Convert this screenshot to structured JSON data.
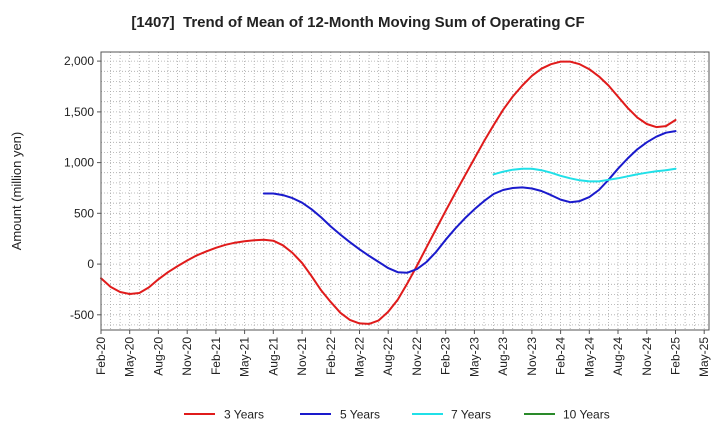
{
  "chart_data": {
    "type": "line",
    "title": "[1407]  Trend of Mean of 12-Month Moving Sum of Operating CF",
    "xlabel": "",
    "ylabel": "Amount (million yen)",
    "x_ticks": [
      "Feb-20",
      "May-20",
      "Aug-20",
      "Nov-20",
      "Feb-21",
      "May-21",
      "Aug-21",
      "Nov-21",
      "Feb-22",
      "May-22",
      "Aug-22",
      "Nov-22",
      "Feb-23",
      "May-23",
      "Aug-23",
      "Nov-23",
      "Feb-24",
      "May-24",
      "Aug-24",
      "Nov-24",
      "Feb-25",
      "May-25"
    ],
    "y_ticks": [
      -500,
      0,
      500,
      1000,
      1500,
      2000
    ],
    "y_tick_labels": [
      "-500",
      "0",
      "500",
      "1,000",
      "1,500",
      "2,000"
    ],
    "ylim": [
      -650,
      2090
    ],
    "grid": true,
    "legend_position": "bottom",
    "series": [
      {
        "name": "3 Years",
        "color": "#e01b1b",
        "values": [
          -140,
          -225,
          -275,
          -295,
          -285,
          -230,
          -150,
          -80,
          -20,
          35,
          85,
          125,
          160,
          190,
          210,
          225,
          235,
          240,
          230,
          185,
          110,
          10,
          -120,
          -260,
          -375,
          -480,
          -550,
          -585,
          -590,
          -555,
          -470,
          -350,
          -190,
          -15,
          165,
          345,
          525,
          700,
          870,
          1040,
          1210,
          1370,
          1520,
          1650,
          1760,
          1855,
          1925,
          1970,
          1995,
          1995,
          1970,
          1920,
          1850,
          1760,
          1650,
          1540,
          1445,
          1380,
          1350,
          1360,
          1420
        ]
      },
      {
        "name": "5 Years",
        "color": "#1a1acc",
        "values": [
          null,
          null,
          null,
          null,
          null,
          null,
          null,
          null,
          null,
          null,
          null,
          null,
          null,
          null,
          null,
          null,
          null,
          695,
          695,
          680,
          650,
          605,
          540,
          460,
          370,
          290,
          215,
          145,
          80,
          20,
          -40,
          -80,
          -85,
          -50,
          20,
          120,
          240,
          350,
          450,
          540,
          620,
          690,
          730,
          750,
          755,
          745,
          720,
          680,
          635,
          610,
          620,
          660,
          730,
          830,
          940,
          1040,
          1130,
          1200,
          1255,
          1295,
          1310
        ]
      },
      {
        "name": "7 Years",
        "color": "#20e0e8",
        "values": [
          null,
          null,
          null,
          null,
          null,
          null,
          null,
          null,
          null,
          null,
          null,
          null,
          null,
          null,
          null,
          null,
          null,
          null,
          null,
          null,
          null,
          null,
          null,
          null,
          null,
          null,
          null,
          null,
          null,
          null,
          null,
          null,
          null,
          null,
          null,
          null,
          null,
          null,
          null,
          null,
          null,
          885,
          910,
          930,
          940,
          940,
          925,
          900,
          870,
          845,
          825,
          815,
          815,
          830,
          845,
          865,
          885,
          900,
          915,
          925,
          940
        ]
      },
      {
        "name": "10 Years",
        "color": "#2a8a2a",
        "values": []
      }
    ]
  }
}
